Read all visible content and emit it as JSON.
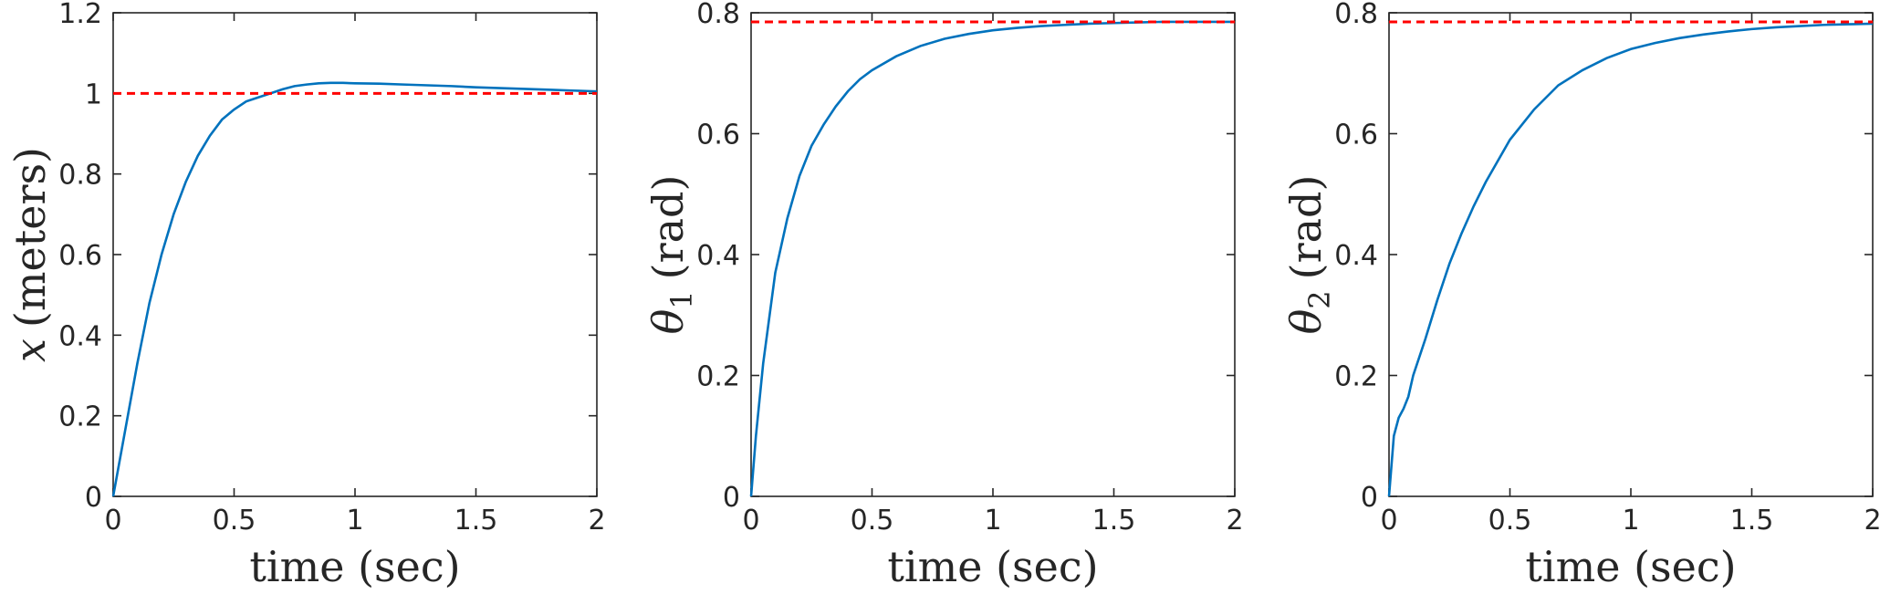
{
  "chart_data": [
    {
      "type": "line",
      "xlabel": "time (sec)",
      "ylabel": {
        "symbol": "x",
        "sub": "",
        "unit": "(meters)"
      },
      "xlim": [
        0,
        2
      ],
      "ylim": [
        0,
        1.2
      ],
      "xticks": [
        0,
        0.5,
        1,
        1.5,
        2
      ],
      "xtick_labels": [
        "0",
        "0.5",
        "1",
        "1.5",
        "2"
      ],
      "yticks": [
        0,
        0.2,
        0.4,
        0.6,
        0.8,
        1,
        1.2
      ],
      "ytick_labels": [
        "0",
        "0.2",
        "0.4",
        "0.6",
        "0.8",
        "1",
        "1.2"
      ],
      "grid": false,
      "series": [
        {
          "color": "#0072BD",
          "style": "solid",
          "x": [
            0,
            0.05,
            0.1,
            0.15,
            0.2,
            0.25,
            0.3,
            0.35,
            0.4,
            0.45,
            0.5,
            0.55,
            0.6,
            0.65,
            0.7,
            0.75,
            0.8,
            0.85,
            0.9,
            0.95,
            1.0,
            1.1,
            1.2,
            1.3,
            1.4,
            1.5,
            1.6,
            1.7,
            1.8,
            1.9,
            2.0
          ],
          "y": [
            0,
            0.165,
            0.33,
            0.48,
            0.6,
            0.7,
            0.78,
            0.845,
            0.895,
            0.935,
            0.96,
            0.98,
            0.99,
            1.0,
            1.01,
            1.018,
            1.022,
            1.025,
            1.026,
            1.026,
            1.025,
            1.024,
            1.022,
            1.02,
            1.018,
            1.015,
            1.013,
            1.011,
            1.009,
            1.007,
            1.005
          ]
        },
        {
          "color": "#FF0000",
          "style": "dashed",
          "x": [
            0,
            2
          ],
          "y": [
            1,
            1
          ]
        }
      ]
    },
    {
      "type": "line",
      "xlabel": "time (sec)",
      "ylabel": {
        "symbol": "θ",
        "sub": "1",
        "unit": "(rad)"
      },
      "xlim": [
        0,
        2
      ],
      "ylim": [
        0,
        0.8
      ],
      "xticks": [
        0,
        0.5,
        1,
        1.5,
        2
      ],
      "xtick_labels": [
        "0",
        "0.5",
        "1",
        "1.5",
        "2"
      ],
      "yticks": [
        0,
        0.2,
        0.4,
        0.6,
        0.8
      ],
      "ytick_labels": [
        "0",
        "0.2",
        "0.4",
        "0.6",
        "0.8"
      ],
      "grid": false,
      "series": [
        {
          "color": "#0072BD",
          "style": "solid",
          "x": [
            0,
            0.02,
            0.05,
            0.1,
            0.15,
            0.2,
            0.25,
            0.3,
            0.35,
            0.4,
            0.45,
            0.5,
            0.6,
            0.7,
            0.8,
            0.9,
            1.0,
            1.1,
            1.2,
            1.3,
            1.4,
            1.5,
            1.6,
            1.7,
            1.8,
            1.9,
            2.0
          ],
          "y": [
            0,
            0.1,
            0.22,
            0.37,
            0.46,
            0.53,
            0.58,
            0.615,
            0.645,
            0.67,
            0.69,
            0.705,
            0.728,
            0.745,
            0.757,
            0.765,
            0.771,
            0.775,
            0.778,
            0.78,
            0.782,
            0.783,
            0.784,
            0.785,
            0.785,
            0.785,
            0.785
          ]
        },
        {
          "color": "#FF0000",
          "style": "dashed",
          "x": [
            0,
            2
          ],
          "y": [
            0.785,
            0.785
          ]
        }
      ]
    },
    {
      "type": "line",
      "xlabel": "time (sec)",
      "ylabel": {
        "symbol": "θ",
        "sub": "2",
        "unit": "(rad)"
      },
      "xlim": [
        0,
        2
      ],
      "ylim": [
        0,
        0.8
      ],
      "xticks": [
        0,
        0.5,
        1,
        1.5,
        2
      ],
      "xtick_labels": [
        "0",
        "0.5",
        "1",
        "1.5",
        "2"
      ],
      "yticks": [
        0,
        0.2,
        0.4,
        0.6,
        0.8
      ],
      "ytick_labels": [
        "0",
        "0.2",
        "0.4",
        "0.6",
        "0.8"
      ],
      "grid": false,
      "series": [
        {
          "color": "#0072BD",
          "style": "solid",
          "x": [
            0,
            0.02,
            0.04,
            0.06,
            0.08,
            0.1,
            0.15,
            0.2,
            0.25,
            0.3,
            0.35,
            0.4,
            0.5,
            0.6,
            0.7,
            0.8,
            0.9,
            1.0,
            1.1,
            1.2,
            1.3,
            1.4,
            1.5,
            1.6,
            1.7,
            1.8,
            1.9,
            2.0
          ],
          "y": [
            0,
            0.1,
            0.13,
            0.145,
            0.165,
            0.2,
            0.26,
            0.325,
            0.385,
            0.435,
            0.48,
            0.52,
            0.59,
            0.64,
            0.68,
            0.705,
            0.725,
            0.74,
            0.75,
            0.758,
            0.764,
            0.769,
            0.773,
            0.776,
            0.778,
            0.78,
            0.781,
            0.782
          ]
        },
        {
          "color": "#FF0000",
          "style": "dashed",
          "x": [
            0,
            2
          ],
          "y": [
            0.785,
            0.785
          ]
        }
      ]
    }
  ]
}
